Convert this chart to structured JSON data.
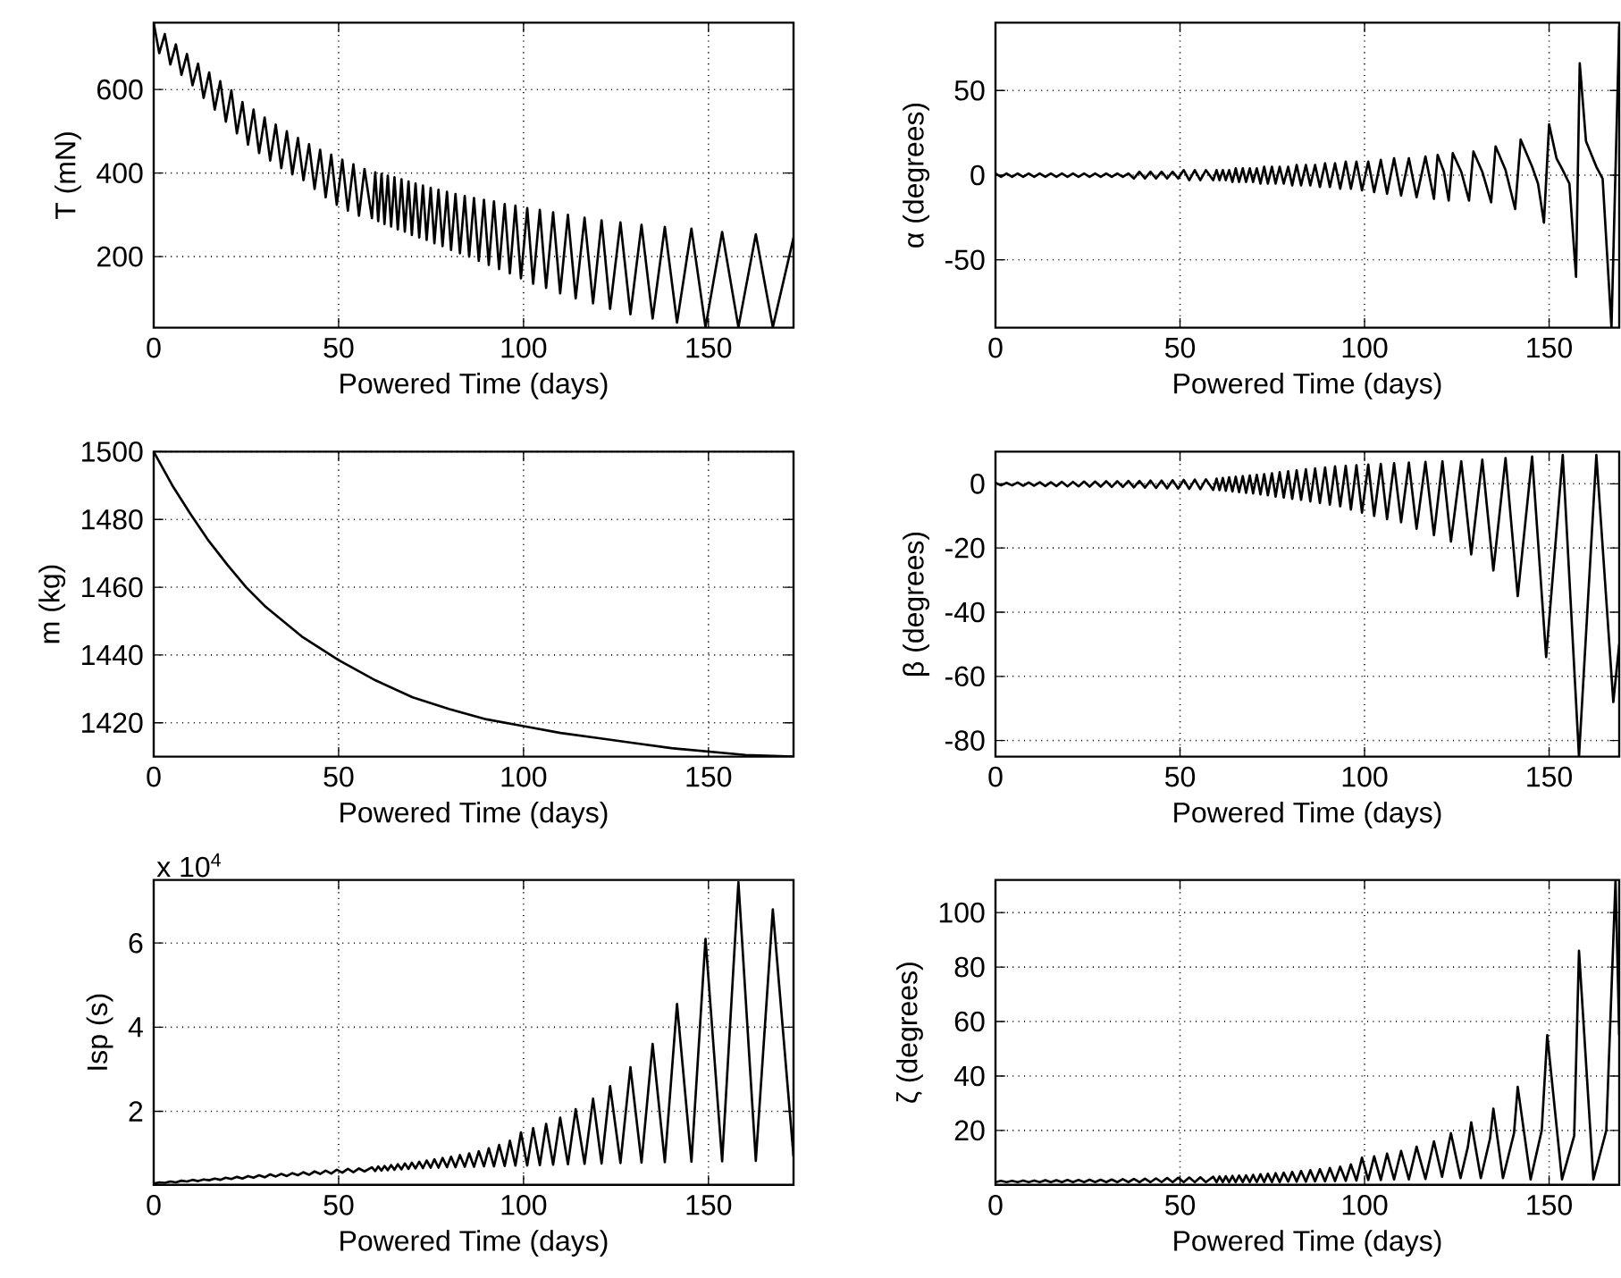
{
  "chart_data": [
    {
      "type": "line",
      "xlabel": "Powered Time (days)",
      "ylabel": "T (mN)",
      "color": "#000000",
      "grid": true,
      "xlim": [
        0,
        173
      ],
      "ylim": [
        30,
        760
      ],
      "xticks": [
        0,
        50,
        100,
        150
      ],
      "yticks": [
        200,
        400,
        600
      ],
      "x": [
        0,
        1.5,
        3,
        4.5,
        6,
        7.5,
        9,
        10.5,
        12,
        13.5,
        15,
        16.5,
        18,
        19.5,
        21,
        22.5,
        24,
        25.5,
        27,
        28.5,
        30,
        31.5,
        33,
        34.5,
        36,
        37.5,
        39,
        40.5,
        42,
        43.5,
        45,
        46.5,
        48,
        49.5,
        51,
        52.5,
        54,
        55.5,
        57,
        59.0,
        59.9,
        60.7,
        61.6,
        62.4,
        63.3,
        64.2,
        65.1,
        66.0,
        67.0,
        67.9,
        68.9,
        69.8,
        70.8,
        71.8,
        72.8,
        73.8,
        74.9,
        75.9,
        77.0,
        78.1,
        79.3,
        80.4,
        81.6,
        82.8,
        84.1,
        85.3,
        86.6,
        87.9,
        89.3,
        90.6,
        92.0,
        93.4,
        94.9,
        96.3,
        97.8,
        99.3,
        101.0,
        102.6,
        104.4,
        106.1,
        108.0,
        109.9,
        112.0,
        114.1,
        116.5,
        118.8,
        121.1,
        123.4,
        126.2,
        128.9,
        131.9,
        134.9,
        138.2,
        141.5,
        145.4,
        149.2,
        153.7,
        158.1,
        162.8,
        167.4,
        173
      ],
      "values": [
        760,
        687,
        733,
        660,
        708,
        635,
        685,
        610,
        662,
        580,
        641,
        552,
        620,
        523,
        598,
        495,
        570,
        468,
        552,
        448,
        533,
        430,
        516,
        412,
        500,
        397,
        484,
        383,
        469,
        362,
        456,
        342,
        444,
        324,
        432,
        310,
        421,
        298,
        410,
        292,
        402,
        285,
        398,
        278,
        394,
        272,
        390,
        265,
        385,
        260,
        380,
        252,
        375,
        246,
        370,
        240,
        365,
        232,
        360,
        225,
        355,
        216,
        350,
        208,
        345,
        200,
        340,
        190,
        336,
        180,
        332,
        170,
        326,
        160,
        322,
        148,
        316,
        135,
        312,
        125,
        306,
        112,
        300,
        100,
        293,
        88,
        287,
        75,
        282,
        62,
        276,
        52,
        271,
        42,
        267,
        31,
        259,
        31,
        253,
        31,
        245
      ]
    },
    {
      "type": "line",
      "xlabel": "Powered Time (days)",
      "ylabel": "α (degrees)",
      "color": "#000000",
      "grid": true,
      "xlim": [
        0,
        169
      ],
      "ylim": [
        -90,
        90
      ],
      "xticks": [
        0,
        50,
        100,
        150
      ],
      "yticks": [
        -50,
        0,
        50
      ],
      "x": [
        0,
        1.5,
        3,
        4.5,
        6,
        7.5,
        9,
        10.5,
        12,
        13.5,
        15,
        16.5,
        18,
        19.5,
        21,
        22.5,
        24,
        25.5,
        27,
        28.5,
        30,
        31.5,
        33,
        34.5,
        36,
        37.5,
        39,
        40.5,
        42,
        43.5,
        45,
        46.5,
        48,
        49.5,
        51,
        52.5,
        54,
        55.5,
        57,
        59.0,
        59.9,
        60.7,
        61.6,
        62.4,
        63.3,
        64.2,
        65.1,
        66.0,
        67.0,
        67.9,
        68.9,
        69.8,
        70.8,
        71.8,
        72.8,
        73.8,
        74.9,
        75.9,
        77.0,
        78.1,
        79.3,
        80.4,
        81.6,
        82.8,
        84.1,
        85.3,
        86.6,
        87.9,
        89.3,
        90.6,
        92.0,
        93.4,
        94.9,
        96.3,
        97.8,
        99.3,
        101.0,
        102.6,
        104.4,
        106.1,
        108.0,
        109.9,
        112.0,
        114.1,
        116.5,
        118.8,
        119.8,
        121.5,
        122.8,
        123.9,
        126.2,
        128.3,
        129.5,
        131.9,
        134.3,
        135.5,
        138.2,
        140.8,
        142.3,
        145.4,
        147.0,
        148.6,
        150.0,
        152.0,
        153.7,
        155.5,
        157.3,
        158.3,
        160.0,
        162.8,
        164.5,
        166.9,
        169
      ],
      "values": [
        1,
        -1,
        1,
        -1,
        1,
        -1,
        1,
        -1,
        1,
        -1,
        1,
        -1,
        1,
        -1,
        1,
        -1,
        1,
        -1,
        1,
        -1,
        1,
        -1,
        1,
        -1,
        1,
        -2,
        2,
        -2,
        2,
        -2,
        2,
        -2,
        2,
        -2,
        3,
        -3,
        3,
        -3,
        3,
        -3,
        3,
        -3,
        3,
        -3,
        3,
        -4,
        4,
        -4,
        4,
        -4,
        4,
        -4,
        4,
        -5,
        5,
        -5,
        5,
        -5,
        5,
        -5,
        5,
        -6,
        6,
        -6,
        6,
        -6,
        6,
        -7,
        7,
        -7,
        7,
        -8,
        8,
        -8,
        8,
        -9,
        8,
        -10,
        9,
        -11,
        10,
        -12,
        10,
        -13,
        11,
        -14,
        12,
        2,
        -15,
        13,
        2,
        -15,
        14,
        2,
        -16,
        17,
        3,
        -20,
        21,
        5,
        -5,
        -28,
        30,
        10,
        3,
        -5,
        -60,
        66,
        20,
        5,
        -2,
        -90,
        88
      ]
    },
    {
      "type": "line",
      "xlabel": "Powered Time (days)",
      "ylabel": "m (kg)",
      "color": "#000000",
      "grid": true,
      "xlim": [
        0,
        173
      ],
      "ylim": [
        1410,
        1500
      ],
      "xticks": [
        0,
        50,
        100,
        150
      ],
      "yticks": [
        1420,
        1440,
        1460,
        1480,
        1500
      ],
      "x": [
        0,
        5,
        10,
        15,
        20,
        25,
        30,
        40,
        50,
        60,
        70,
        80,
        90,
        100,
        110,
        120,
        130,
        140,
        150,
        160,
        173
      ],
      "values": [
        1500,
        1490.1,
        1481.5,
        1473.5,
        1466.5,
        1460,
        1454.5,
        1445.5,
        1438.5,
        1432.5,
        1427.5,
        1424,
        1421,
        1419,
        1417,
        1415.5,
        1414,
        1412.5,
        1411.5,
        1410.5,
        1410
      ]
    },
    {
      "type": "line",
      "xlabel": "Powered Time (days)",
      "ylabel": "β (degrees)",
      "color": "#000000",
      "grid": true,
      "xlim": [
        0,
        169
      ],
      "ylim": [
        -85,
        10
      ],
      "xticks": [
        0,
        50,
        100,
        150
      ],
      "yticks": [
        -80,
        -60,
        -40,
        -20,
        0
      ],
      "x": [
        0,
        1.5,
        3,
        4.5,
        6,
        7.5,
        9,
        10.5,
        12,
        13.5,
        15,
        16.5,
        18,
        19.5,
        21,
        22.5,
        24,
        25.5,
        27,
        28.5,
        30,
        31.5,
        33,
        34.5,
        36,
        37.5,
        39,
        40.5,
        42,
        43.5,
        45,
        46.5,
        48,
        49.5,
        51,
        52.5,
        54,
        55.5,
        57,
        59.0,
        59.9,
        60.7,
        61.6,
        62.4,
        63.3,
        64.2,
        65.1,
        66.0,
        67.0,
        67.9,
        68.9,
        69.8,
        70.8,
        71.8,
        72.8,
        73.8,
        74.9,
        75.9,
        77.0,
        78.1,
        79.3,
        80.4,
        81.6,
        82.8,
        84.1,
        85.3,
        86.6,
        87.9,
        89.3,
        90.6,
        92.0,
        93.4,
        94.9,
        96.3,
        97.8,
        99.3,
        101.0,
        102.6,
        104.4,
        106.1,
        108.0,
        109.9,
        112.0,
        114.1,
        116.5,
        118.8,
        121.1,
        123.4,
        126.2,
        128.9,
        131.9,
        134.9,
        138.2,
        141.5,
        145.4,
        149.2,
        153.7,
        158.1,
        162.8,
        167.4,
        169
      ],
      "values": [
        0.3,
        -0.5,
        0.3,
        -0.5,
        0.4,
        -0.6,
        0.4,
        -0.6,
        0.5,
        -0.7,
        0.5,
        -0.7,
        0.6,
        -0.8,
        0.6,
        -0.8,
        0.7,
        -0.9,
        0.7,
        -0.9,
        0.8,
        -1,
        0.8,
        -1,
        0.9,
        -1.1,
        0.9,
        -1.2,
        1,
        -1.3,
        1,
        -1.4,
        1.1,
        -1.5,
        1.2,
        -1.6,
        1.3,
        -1.7,
        1.4,
        -1.9,
        1.6,
        -2,
        1.8,
        -2.2,
        2,
        -2.4,
        2.2,
        -2.6,
        2.4,
        -2.8,
        2.6,
        -3,
        2.8,
        -3.3,
        3,
        -3.6,
        3.3,
        -4,
        3.6,
        -4.3,
        3.9,
        -4.7,
        4.2,
        -5,
        4.5,
        -5.5,
        4.8,
        -6,
        5.1,
        -6.5,
        5.4,
        -7,
        5.6,
        -8,
        5.8,
        -9,
        6,
        -10,
        6.2,
        -11,
        6.4,
        -12,
        6.6,
        -14,
        6.8,
        -16,
        7,
        -18,
        7,
        -22,
        7.5,
        -27,
        8,
        -35,
        8.5,
        -54,
        9,
        -85,
        9,
        -68,
        -50
      ]
    },
    {
      "type": "line",
      "xlabel": "Powered Time (days)",
      "ylabel": "Isp (s)",
      "color": "#000000",
      "grid": true,
      "xlim": [
        0,
        173
      ],
      "ylim": [
        0.25,
        7.5
      ],
      "xticks": [
        0,
        50,
        100,
        150
      ],
      "yticks": [
        2,
        4,
        6
      ],
      "annotations": [
        "x 10$^{4}$"
      ],
      "x": [
        0,
        1.5,
        3,
        4.5,
        6,
        7.5,
        9,
        10.5,
        12,
        13.5,
        15,
        16.5,
        18,
        19.5,
        21,
        22.5,
        24,
        25.5,
        27,
        28.5,
        30,
        31.5,
        33,
        34.5,
        36,
        37.5,
        39,
        40.5,
        42,
        43.5,
        45,
        46.5,
        48,
        49.5,
        51,
        52.5,
        54,
        55.5,
        57,
        59.0,
        59.9,
        60.7,
        61.6,
        62.4,
        63.3,
        64.2,
        65.1,
        66.0,
        67.0,
        67.9,
        68.9,
        69.8,
        70.8,
        71.8,
        72.8,
        73.8,
        74.9,
        75.9,
        77.0,
        78.1,
        79.3,
        80.4,
        81.6,
        82.8,
        84.1,
        85.3,
        86.6,
        87.9,
        89.3,
        90.6,
        92.0,
        93.4,
        94.9,
        96.3,
        97.8,
        99.3,
        101.0,
        102.6,
        104.4,
        106.1,
        108.0,
        109.9,
        112.0,
        114.1,
        116.5,
        118.8,
        121.1,
        123.4,
        126.2,
        128.9,
        131.9,
        134.9,
        138.2,
        141.5,
        145.4,
        149.2,
        153.7,
        158.1,
        162.8,
        167.4,
        173
      ],
      "values": [
        0.28,
        0.31,
        0.3,
        0.33,
        0.31,
        0.35,
        0.33,
        0.37,
        0.34,
        0.38,
        0.36,
        0.4,
        0.37,
        0.42,
        0.39,
        0.44,
        0.4,
        0.46,
        0.42,
        0.48,
        0.43,
        0.5,
        0.45,
        0.51,
        0.46,
        0.53,
        0.48,
        0.55,
        0.49,
        0.57,
        0.51,
        0.59,
        0.52,
        0.61,
        0.54,
        0.63,
        0.55,
        0.64,
        0.57,
        0.67,
        0.58,
        0.69,
        0.59,
        0.7,
        0.6,
        0.72,
        0.61,
        0.74,
        0.62,
        0.76,
        0.63,
        0.78,
        0.64,
        0.8,
        0.65,
        0.83,
        0.66,
        0.86,
        0.66,
        0.89,
        0.67,
        0.92,
        0.67,
        0.96,
        0.68,
        1,
        0.68,
        1.05,
        0.69,
        1.12,
        0.69,
        1.2,
        0.7,
        1.3,
        0.71,
        1.5,
        0.71,
        1.6,
        0.72,
        1.7,
        0.73,
        1.85,
        0.74,
        2.05,
        0.75,
        2.3,
        0.76,
        2.6,
        0.77,
        3.05,
        0.78,
        3.6,
        0.79,
        4.55,
        0.8,
        6.1,
        0.81,
        7.45,
        0.82,
        6.8,
        0.93
      ]
    },
    {
      "type": "line",
      "xlabel": "Powered Time (days)",
      "ylabel": "ζ (degrees)",
      "color": "#000000",
      "grid": true,
      "xlim": [
        0,
        169
      ],
      "ylim": [
        0,
        112
      ],
      "xticks": [
        0,
        50,
        100,
        150
      ],
      "yticks": [
        20,
        40,
        60,
        80,
        100
      ],
      "x": [
        0,
        1.5,
        3,
        4.5,
        6,
        7.5,
        9,
        10.5,
        12,
        13.5,
        15,
        16.5,
        18,
        19.5,
        21,
        22.5,
        24,
        25.5,
        27,
        28.5,
        30,
        31.5,
        33,
        34.5,
        36,
        37.5,
        39,
        40.5,
        42,
        43.5,
        45,
        46.5,
        48,
        49.5,
        51,
        52.5,
        54,
        55.5,
        57,
        59.0,
        59.9,
        60.7,
        61.6,
        62.4,
        63.3,
        64.2,
        65.1,
        66.0,
        67.0,
        67.9,
        68.9,
        69.8,
        70.8,
        71.8,
        72.8,
        73.8,
        74.9,
        75.9,
        77.0,
        78.1,
        79.3,
        80.4,
        81.6,
        82.8,
        84.1,
        85.3,
        86.6,
        87.9,
        89.3,
        90.6,
        92.0,
        93.4,
        94.9,
        96.3,
        97.8,
        99.3,
        101.0,
        102.6,
        104.4,
        106.1,
        108.0,
        109.9,
        112.0,
        114.1,
        116.5,
        118.8,
        121,
        123.4,
        126,
        128,
        128.9,
        131.5,
        134,
        134.9,
        137.5,
        140.5,
        141.5,
        145,
        148,
        149.5,
        153.5,
        156.8,
        158.1,
        162,
        165.5,
        168,
        169
      ],
      "values": [
        1,
        1.5,
        1,
        1.5,
        1,
        1.6,
        1,
        1.6,
        1,
        1.7,
        1,
        1.7,
        1,
        1.8,
        1,
        1.8,
        1,
        1.9,
        1,
        1.9,
        1,
        2,
        1,
        2.1,
        1,
        2.2,
        1,
        2.3,
        1,
        2.4,
        1,
        2.5,
        1,
        2.6,
        1,
        2.7,
        1,
        2.8,
        1,
        3,
        1,
        3.1,
        1,
        3.2,
        1,
        3.3,
        1,
        3.4,
        1,
        3.5,
        1,
        3.7,
        1,
        3.9,
        1,
        4.1,
        1,
        4.3,
        1,
        4.5,
        1.2,
        4.8,
        1.2,
        5.1,
        1.2,
        5.4,
        1.3,
        5.8,
        1.3,
        6.2,
        1.4,
        6.7,
        1.5,
        7.5,
        1.6,
        10,
        1.8,
        10.5,
        1.8,
        11.5,
        2,
        12.5,
        2,
        14,
        2.2,
        16,
        3,
        19,
        2.5,
        14,
        23,
        2.5,
        17,
        28,
        2.5,
        19,
        36,
        2,
        20,
        55,
        2,
        18,
        86,
        2,
        20,
        112,
        55
      ]
    }
  ]
}
